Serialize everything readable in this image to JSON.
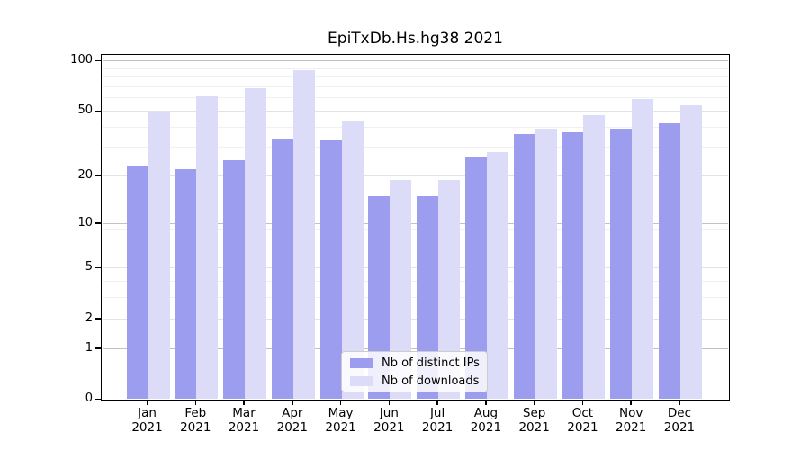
{
  "chart_data": {
    "type": "bar",
    "title": "EpiTxDb.Hs.hg38 2021",
    "categories": [
      "Jan",
      "Feb",
      "Mar",
      "Apr",
      "May",
      "Jun",
      "Jul",
      "Aug",
      "Sep",
      "Oct",
      "Nov",
      "Dec"
    ],
    "x_year_label": "2021",
    "series": [
      {
        "name": "Nb of distinct IPs",
        "color": "#9d9df0",
        "values": [
          23,
          22,
          25,
          34,
          33,
          15,
          15,
          26,
          36,
          37,
          39,
          42
        ]
      },
      {
        "name": "Nb of downloads",
        "color": "#dcdcf9",
        "values": [
          49,
          61,
          69,
          88,
          44,
          19,
          19,
          28,
          39,
          47,
          59,
          54
        ]
      }
    ],
    "yscale": "log1p",
    "ylim": [
      0,
      110
    ],
    "yticks": [
      0,
      1,
      2,
      5,
      10,
      20,
      50,
      100
    ],
    "minor_gridlines": [
      3,
      4,
      6,
      7,
      8,
      9,
      30,
      40,
      60,
      70,
      80,
      90
    ],
    "decade_gridlines": [
      1,
      10,
      100
    ],
    "grid": true,
    "legend_position": "lower center",
    "colors": {
      "distinct_ips_bar": "#9d9df0",
      "downloads_bar": "#dcdcf9",
      "decade_grid": "#c2c2c2",
      "major_grid": "#e3e3e3",
      "minor_grid": "#f0f0f0",
      "axis": "#000000",
      "background": "#ffffff"
    }
  }
}
